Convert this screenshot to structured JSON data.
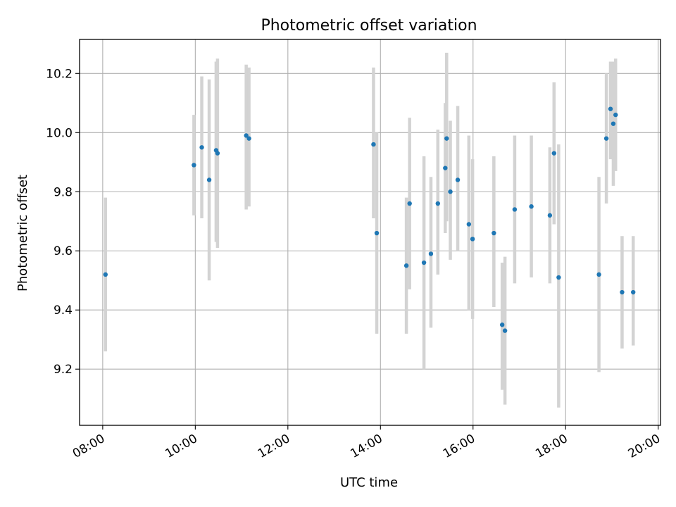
{
  "chart_data": {
    "type": "scatter",
    "title": "Photometric offset variation",
    "xlabel": "UTC time",
    "ylabel": "Photometric offset",
    "x_unit": "hours",
    "xlim": [
      7.5,
      20.05
    ],
    "ylim": [
      9.01,
      10.315
    ],
    "grid": true,
    "x_ticks": [
      {
        "value": 8,
        "label": "08:00"
      },
      {
        "value": 10,
        "label": "10:00"
      },
      {
        "value": 12,
        "label": "12:00"
      },
      {
        "value": 14,
        "label": "14:00"
      },
      {
        "value": 16,
        "label": "16:00"
      },
      {
        "value": 18,
        "label": "18:00"
      },
      {
        "value": 20,
        "label": "20:00"
      }
    ],
    "y_ticks": [
      {
        "value": 9.2,
        "label": "9.2"
      },
      {
        "value": 9.4,
        "label": "9.4"
      },
      {
        "value": 9.6,
        "label": "9.6"
      },
      {
        "value": 9.8,
        "label": "9.8"
      },
      {
        "value": 10.0,
        "label": "10.0"
      },
      {
        "value": 10.2,
        "label": "10.2"
      }
    ],
    "colors": {
      "marker": "#1f77b4",
      "errorbar": "#d3d3d3",
      "grid": "#b0b0b0"
    },
    "points": [
      {
        "x": 8.06,
        "y": 9.52,
        "low": 9.26,
        "high": 9.78
      },
      {
        "x": 9.97,
        "y": 9.89,
        "low": 9.72,
        "high": 10.06
      },
      {
        "x": 10.14,
        "y": 9.95,
        "low": 9.71,
        "high": 10.19
      },
      {
        "x": 10.3,
        "y": 9.84,
        "low": 9.5,
        "high": 10.18
      },
      {
        "x": 10.45,
        "y": 9.94,
        "low": 9.63,
        "high": 10.24
      },
      {
        "x": 10.48,
        "y": 9.93,
        "low": 9.61,
        "high": 10.25
      },
      {
        "x": 11.1,
        "y": 9.99,
        "low": 9.74,
        "high": 10.23
      },
      {
        "x": 11.16,
        "y": 9.98,
        "low": 9.75,
        "high": 10.22
      },
      {
        "x": 13.85,
        "y": 9.96,
        "low": 9.71,
        "high": 10.22
      },
      {
        "x": 13.92,
        "y": 9.66,
        "low": 9.32,
        "high": 10.0
      },
      {
        "x": 14.56,
        "y": 9.55,
        "low": 9.32,
        "high": 9.78
      },
      {
        "x": 14.63,
        "y": 9.76,
        "low": 9.47,
        "high": 10.05
      },
      {
        "x": 14.94,
        "y": 9.56,
        "low": 9.2,
        "high": 9.92
      },
      {
        "x": 15.09,
        "y": 9.59,
        "low": 9.34,
        "high": 9.85
      },
      {
        "x": 15.24,
        "y": 9.76,
        "low": 9.52,
        "high": 10.01
      },
      {
        "x": 15.4,
        "y": 9.88,
        "low": 9.66,
        "high": 10.1
      },
      {
        "x": 15.43,
        "y": 9.98,
        "low": 9.7,
        "high": 10.27
      },
      {
        "x": 15.51,
        "y": 9.8,
        "low": 9.57,
        "high": 10.04
      },
      {
        "x": 15.67,
        "y": 9.84,
        "low": 9.6,
        "high": 10.09
      },
      {
        "x": 15.91,
        "y": 9.69,
        "low": 9.4,
        "high": 9.99
      },
      {
        "x": 15.99,
        "y": 9.64,
        "low": 9.37,
        "high": 9.91
      },
      {
        "x": 16.45,
        "y": 9.66,
        "low": 9.41,
        "high": 9.92
      },
      {
        "x": 16.63,
        "y": 9.35,
        "low": 9.13,
        "high": 9.56
      },
      {
        "x": 16.69,
        "y": 9.33,
        "low": 9.08,
        "high": 9.58
      },
      {
        "x": 16.9,
        "y": 9.74,
        "low": 9.49,
        "high": 9.99
      },
      {
        "x": 17.26,
        "y": 9.75,
        "low": 9.51,
        "high": 9.99
      },
      {
        "x": 17.66,
        "y": 9.72,
        "low": 9.49,
        "high": 9.95
      },
      {
        "x": 17.75,
        "y": 9.93,
        "low": 9.69,
        "high": 10.17
      },
      {
        "x": 17.85,
        "y": 9.51,
        "low": 9.07,
        "high": 9.96
      },
      {
        "x": 18.72,
        "y": 9.52,
        "low": 9.19,
        "high": 9.85
      },
      {
        "x": 18.88,
        "y": 9.98,
        "low": 9.76,
        "high": 10.2
      },
      {
        "x": 18.97,
        "y": 10.08,
        "low": 9.91,
        "high": 10.24
      },
      {
        "x": 19.03,
        "y": 10.03,
        "low": 9.82,
        "high": 10.24
      },
      {
        "x": 19.08,
        "y": 10.06,
        "low": 9.87,
        "high": 10.25
      },
      {
        "x": 19.22,
        "y": 9.46,
        "low": 9.27,
        "high": 9.65
      },
      {
        "x": 19.46,
        "y": 9.46,
        "low": 9.28,
        "high": 9.65
      }
    ]
  }
}
